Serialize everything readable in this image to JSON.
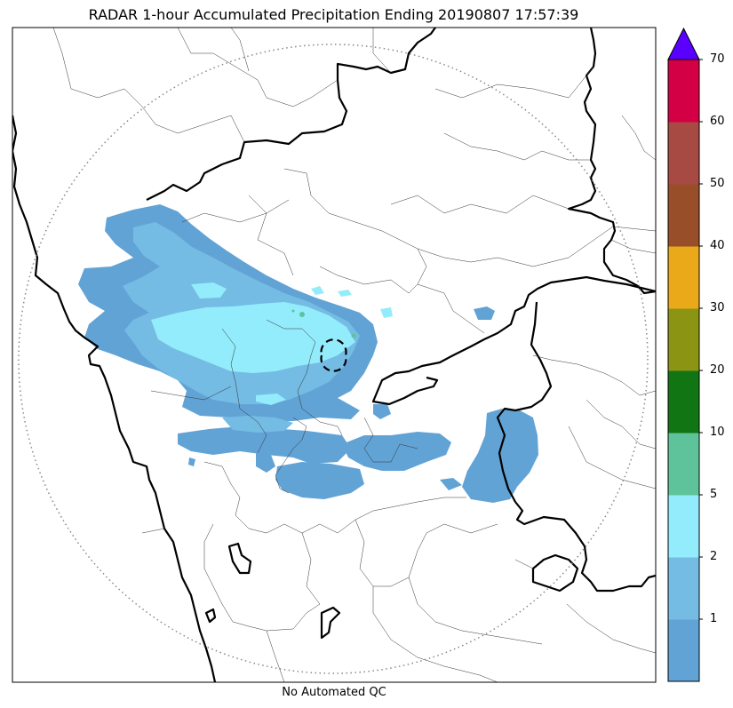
{
  "title": "RADAR 1-hour Accumulated Precipitation Ending 20190807 17:57:39",
  "footer": "No Automated QC",
  "colorbar": {
    "bins": [
      {
        "color": "#62a3d6"
      },
      {
        "color": "#74bce4",
        "label": "1"
      },
      {
        "color": "#93ecfb",
        "label": "2"
      },
      {
        "color": "#5ec39a",
        "label": "5"
      },
      {
        "color": "#117514",
        "label": "10"
      },
      {
        "color": "#8b9513",
        "label": "20"
      },
      {
        "color": "#e9a918",
        "label": "30"
      },
      {
        "color": "#984e29",
        "label": "40"
      },
      {
        "color": "#a74a43",
        "label": "50"
      },
      {
        "color": "#d40045",
        "label": "60"
      }
    ],
    "top_label": "70",
    "extend_color": "#5a00ff"
  }
}
